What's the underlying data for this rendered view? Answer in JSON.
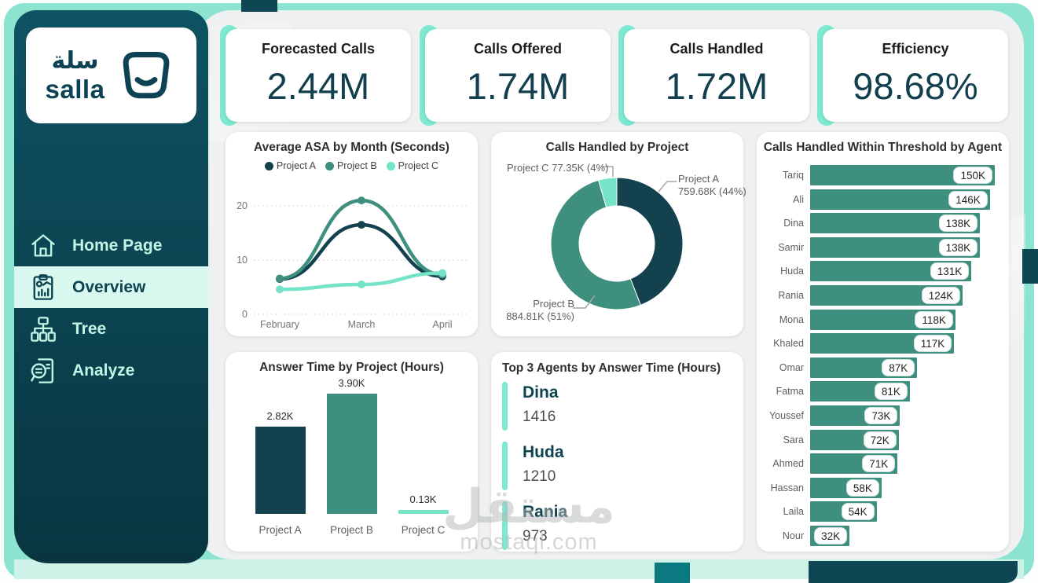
{
  "sidebar": {
    "logo": {
      "arabic": "سلة",
      "latin": "salla"
    },
    "items": [
      {
        "label": "Home Page",
        "icon": "home-icon",
        "active": false
      },
      {
        "label": "Overview",
        "icon": "overview-report-icon",
        "active": true
      },
      {
        "label": "Tree",
        "icon": "tree-hierarchy-icon",
        "active": false
      },
      {
        "label": "Analyze",
        "icon": "analyze-magnifier-icon",
        "active": false
      }
    ]
  },
  "kpis": [
    {
      "label": "Forecasted Calls",
      "value": "2.44M"
    },
    {
      "label": "Calls Offered",
      "value": "1.74M"
    },
    {
      "label": "Calls Handled",
      "value": "1.72M"
    },
    {
      "label": "Efficiency",
      "value": "98.68%"
    }
  ],
  "top_agents": {
    "title": "Top 3 Agents by Answer Time (Hours)",
    "items": [
      {
        "name": "Dina",
        "value": "1416"
      },
      {
        "name": "Huda",
        "value": "1210"
      },
      {
        "name": "Rania",
        "value": "973"
      }
    ]
  },
  "watermark": {
    "arabic": "مستقل",
    "latin": "mostaql.com"
  },
  "colors": {
    "frame_mint": "#8ce3cf",
    "accent_mint": "#7de9d0",
    "sidebar_dark": "#0a3d49",
    "dark_teal": "#13424e",
    "mid_teal": "#3e8f7e",
    "light_mint": "#74e3c6",
    "kpi_value": "#113f4e"
  },
  "chart_data": [
    {
      "id": "asa_by_month",
      "type": "line",
      "title": "Average ASA by Month (Seconds)",
      "x": [
        "February",
        "March",
        "April"
      ],
      "series": [
        {
          "name": "Project A",
          "color": "#13424e",
          "values": [
            6.5,
            16.5,
            7.0
          ]
        },
        {
          "name": "Project B",
          "color": "#3e8f7e",
          "values": [
            6.6,
            21.0,
            7.3
          ]
        },
        {
          "name": "Project C",
          "color": "#74e3c6",
          "values": [
            4.6,
            5.5,
            7.6
          ]
        }
      ],
      "ylim": [
        0,
        25
      ],
      "yticks": [
        0,
        10,
        20
      ],
      "grid": "dotted horizontal",
      "legend_position": "top"
    },
    {
      "id": "calls_handled_by_project",
      "type": "pie",
      "title": "Calls Handled by Project",
      "donut": true,
      "slices": [
        {
          "name": "Project A",
          "value": 759680,
          "label": "759.68K (44%)",
          "color": "#13424e"
        },
        {
          "name": "Project B",
          "value": 884810,
          "label": "884.81K (51%)",
          "color": "#3e8f7e"
        },
        {
          "name": "Project C",
          "value": 77350,
          "label": "77.35K (4%)",
          "color": "#74e3c6"
        }
      ]
    },
    {
      "id": "calls_within_threshold_by_agent",
      "type": "bar",
      "orientation": "horizontal",
      "title": "Calls Handled Within Threshold by Agent",
      "categories": [
        "Tariq",
        "Ali",
        "Dina",
        "Samir",
        "Huda",
        "Rania",
        "Mona",
        "Khaled",
        "Omar",
        "Fatma",
        "Youssef",
        "Sara",
        "Ahmed",
        "Hassan",
        "Laila",
        "Nour"
      ],
      "values": [
        150,
        146,
        138,
        138,
        131,
        124,
        118,
        117,
        87,
        81,
        73,
        72,
        71,
        58,
        54,
        32
      ],
      "labels": [
        "150K",
        "146K",
        "138K",
        "138K",
        "131K",
        "124K",
        "118K",
        "117K",
        "87K",
        "81K",
        "73K",
        "72K",
        "71K",
        "58K",
        "54K",
        "32K"
      ],
      "xmax": 150,
      "bar_color": "#3e8f7e"
    },
    {
      "id": "answer_time_by_project",
      "type": "bar",
      "orientation": "vertical",
      "title": "Answer Time by Project (Hours)",
      "categories": [
        "Project A",
        "Project B",
        "Project C"
      ],
      "values": [
        2820,
        3900,
        130
      ],
      "labels": [
        "2.82K",
        "3.90K",
        "0.13K"
      ],
      "ymax": 3900,
      "colors": [
        "#13424e",
        "#3e8f7e",
        "#74e3c6"
      ]
    }
  ]
}
